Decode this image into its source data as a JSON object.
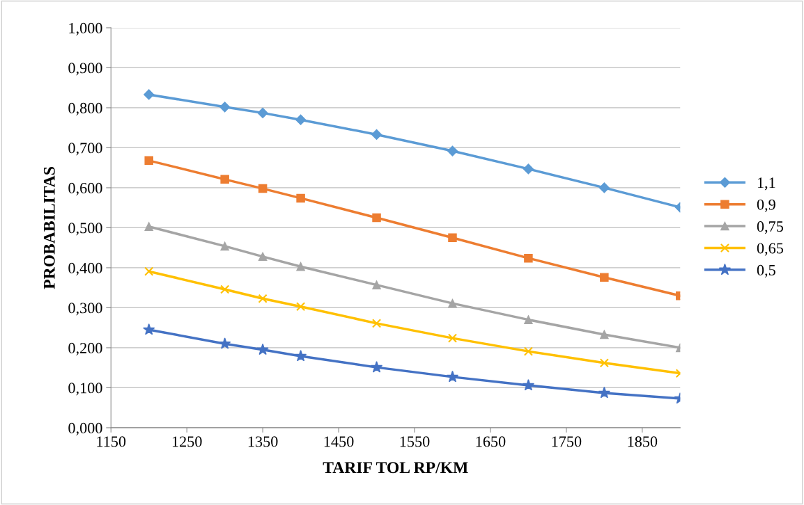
{
  "chart_data": {
    "type": "line",
    "xlabel": "TARIF TOL RP/KM",
    "ylabel": "PROBABILITAS",
    "x": [
      1200,
      1300,
      1350,
      1400,
      1500,
      1600,
      1700,
      1800,
      1900
    ],
    "series": [
      {
        "name": "1,1",
        "color": "#5b9bd5",
        "marker": "diamond",
        "values": [
          0.833,
          0.802,
          0.787,
          0.77,
          0.733,
          0.692,
          0.647,
          0.6,
          0.551
        ]
      },
      {
        "name": "0,9",
        "color": "#ed7d31",
        "marker": "square",
        "values": [
          0.668,
          0.621,
          0.598,
          0.574,
          0.525,
          0.475,
          0.424,
          0.376,
          0.33
        ]
      },
      {
        "name": "0,75",
        "color": "#a5a5a5",
        "marker": "triangle",
        "values": [
          0.503,
          0.454,
          0.428,
          0.403,
          0.357,
          0.311,
          0.27,
          0.233,
          0.2
        ]
      },
      {
        "name": "0,65",
        "color": "#ffc000",
        "marker": "cross",
        "values": [
          0.391,
          0.346,
          0.323,
          0.303,
          0.261,
          0.224,
          0.191,
          0.162,
          0.136
        ]
      },
      {
        "name": "0,5",
        "color": "#4472c4",
        "marker": "star",
        "values": [
          0.245,
          0.21,
          0.195,
          0.179,
          0.151,
          0.127,
          0.106,
          0.087,
          0.073
        ]
      }
    ],
    "xlim": [
      1150,
      1900
    ],
    "xticks": [
      1150,
      1250,
      1350,
      1450,
      1550,
      1650,
      1750,
      1850
    ],
    "ylim": [
      0,
      1
    ],
    "yticks": [
      {
        "value": 0,
        "label": "0,000"
      },
      {
        "value": 0.1,
        "label": "0,100"
      },
      {
        "value": 0.2,
        "label": "0,200"
      },
      {
        "value": 0.3,
        "label": "0,300"
      },
      {
        "value": 0.4,
        "label": "0,400"
      },
      {
        "value": 0.5,
        "label": "0,500"
      },
      {
        "value": 0.6,
        "label": "0,600"
      },
      {
        "value": 0.7,
        "label": "0,700"
      },
      {
        "value": 0.8,
        "label": "0,800"
      },
      {
        "value": 0.9,
        "label": "0,900"
      },
      {
        "value": 1,
        "label": "1,000"
      }
    ],
    "grid": "y",
    "legend": "right",
    "line_style": "solid"
  }
}
